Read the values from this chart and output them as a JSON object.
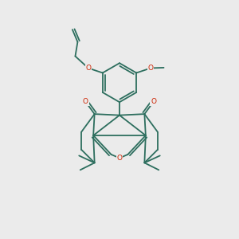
{
  "bg_color": "#ebebeb",
  "bond_color": "#2d6e5e",
  "heteroatom_color": "#cc2200",
  "lw": 1.3,
  "fig_size": [
    3.0,
    3.0
  ],
  "dpi": 100,
  "xlim": [
    0,
    10
  ],
  "ylim": [
    0,
    10
  ]
}
